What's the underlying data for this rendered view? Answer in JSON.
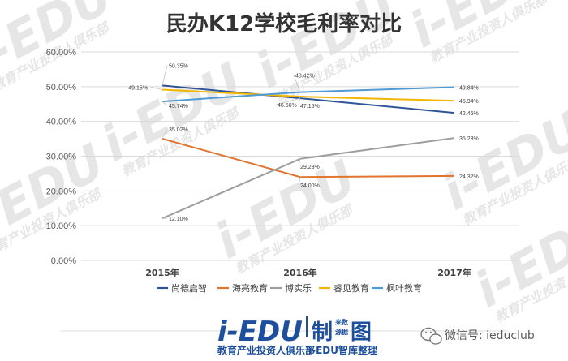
{
  "chart_data": {
    "type": "line",
    "title": "民办K12学校毛利率对比",
    "categories": [
      "2015年",
      "2016年",
      "2017年"
    ],
    "ylim": [
      0,
      60
    ],
    "yticks": [
      0,
      10,
      20,
      30,
      40,
      50,
      60
    ],
    "ytick_labels": [
      "0.00%",
      "10.00%",
      "20.00%",
      "30.00%",
      "40.00%",
      "50.00%",
      "60.00%"
    ],
    "grid": true,
    "legend_position": "bottom",
    "series": [
      {
        "name": "尚德启智",
        "color": "#2e5597",
        "values": [
          50.35,
          46.66,
          42.46
        ],
        "labels": [
          "50.35%",
          "46.66%",
          "42.46%"
        ]
      },
      {
        "name": "海亮教育",
        "color": "#e2742f",
        "values": [
          35.02,
          24.0,
          24.32
        ],
        "labels": [
          "35.02%",
          "24.00%",
          "24.32%"
        ]
      },
      {
        "name": "博实乐",
        "color": "#9e9e9e",
        "values": [
          12.1,
          29.23,
          35.23
        ],
        "labels": [
          "12.10%",
          "29.23%",
          "35.23%"
        ]
      },
      {
        "name": "睿见教育",
        "color": "#f2b500",
        "values": [
          49.15,
          47.15,
          45.94
        ],
        "labels": [
          "49.15%",
          "47.15%",
          "45.94%"
        ]
      },
      {
        "name": "枫叶教育",
        "color": "#4f9bd4",
        "values": [
          45.74,
          48.42,
          49.84
        ],
        "labels": [
          "45.74%",
          "48.42%",
          "49.84%"
        ]
      }
    ]
  },
  "watermark": {
    "text": "i-EDU",
    "subtext": "教育产业投资人俱乐部"
  },
  "footer": {
    "logo_text": "i-EDU",
    "logo_char": "制",
    "logo_small_top": "来数",
    "logo_small_bottom": "源据",
    "logo_char2": "图",
    "logo_tagline_left": "教育产业投资人俱乐部",
    "logo_tagline_right": "i-EDU智库整理",
    "wechat_label": "微信号: ieduclub"
  }
}
